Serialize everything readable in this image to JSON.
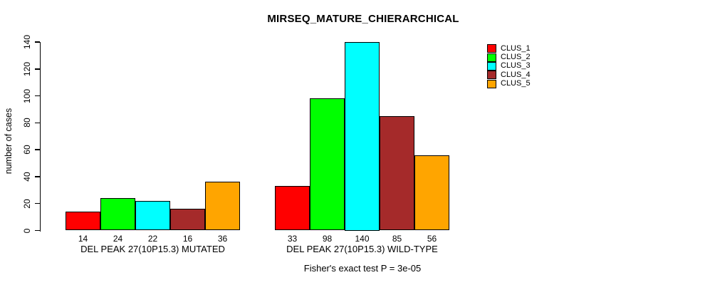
{
  "chart_data": {
    "type": "bar",
    "title": "MIRSEQ_MATURE_CHIERARCHICAL",
    "ylabel": "number of cases",
    "xlabel": "",
    "ylim": [
      0,
      140
    ],
    "yticks": [
      0,
      20,
      40,
      60,
      80,
      100,
      120,
      140
    ],
    "grid": false,
    "legend_position": "right",
    "categories": [
      "DEL PEAK 27(10P15.3) MUTATED",
      "DEL PEAK 27(10P15.3) WILD-TYPE"
    ],
    "series": [
      {
        "name": "CLUS_1",
        "color": "#FF0000",
        "values": [
          14,
          33
        ]
      },
      {
        "name": "CLUS_2",
        "color": "#00FF00",
        "values": [
          24,
          98
        ]
      },
      {
        "name": "CLUS_3",
        "color": "#00FFFF",
        "values": [
          22,
          140
        ]
      },
      {
        "name": "CLUS_4",
        "color": "#A52A2A",
        "values": [
          16,
          85
        ]
      },
      {
        "name": "CLUS_5",
        "color": "#FFA500",
        "values": [
          36,
          56
        ]
      }
    ],
    "bar_value_labels": true,
    "annotation": "Fisher's exact test P = 3e-05"
  }
}
